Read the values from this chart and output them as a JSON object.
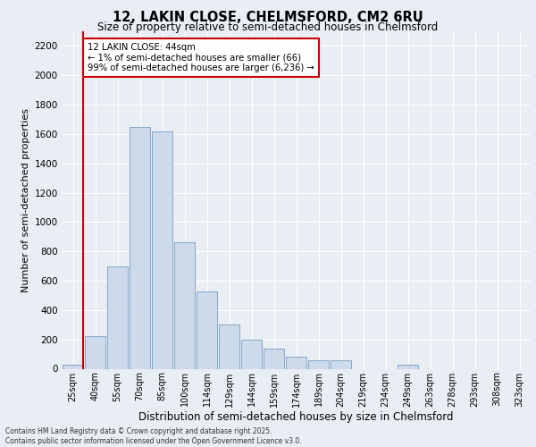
{
  "title_line1": "12, LAKIN CLOSE, CHELMSFORD, CM2 6RU",
  "title_line2": "Size of property relative to semi-detached houses in Chelmsford",
  "xlabel": "Distribution of semi-detached houses by size in Chelmsford",
  "ylabel": "Number of semi-detached properties",
  "categories": [
    "25sqm",
    "40sqm",
    "55sqm",
    "70sqm",
    "85sqm",
    "100sqm",
    "114sqm",
    "129sqm",
    "144sqm",
    "159sqm",
    "174sqm",
    "189sqm",
    "204sqm",
    "219sqm",
    "234sqm",
    "249sqm",
    "263sqm",
    "278sqm",
    "293sqm",
    "308sqm",
    "323sqm"
  ],
  "values": [
    30,
    220,
    700,
    1650,
    1620,
    860,
    530,
    300,
    200,
    140,
    80,
    60,
    60,
    0,
    0,
    30,
    0,
    0,
    0,
    0,
    0
  ],
  "bar_color": "#ccdaec",
  "bar_edge_color": "#7a9cc0",
  "property_line_x": 0.45,
  "property_line_color": "#cc0000",
  "annotation_text": "12 LAKIN CLOSE: 44sqm\n← 1% of semi-detached houses are smaller (66)\n99% of semi-detached houses are larger (6,236) →",
  "annotation_box_color": "#cc0000",
  "ylim": [
    0,
    2300
  ],
  "yticks": [
    0,
    200,
    400,
    600,
    800,
    1000,
    1200,
    1400,
    1600,
    1800,
    2000,
    2200
  ],
  "background_color": "#e8eef4",
  "grid_color": "#ffffff",
  "footer": "Contains HM Land Registry data © Crown copyright and database right 2025.\nContains public sector information licensed under the Open Government Licence v3.0."
}
